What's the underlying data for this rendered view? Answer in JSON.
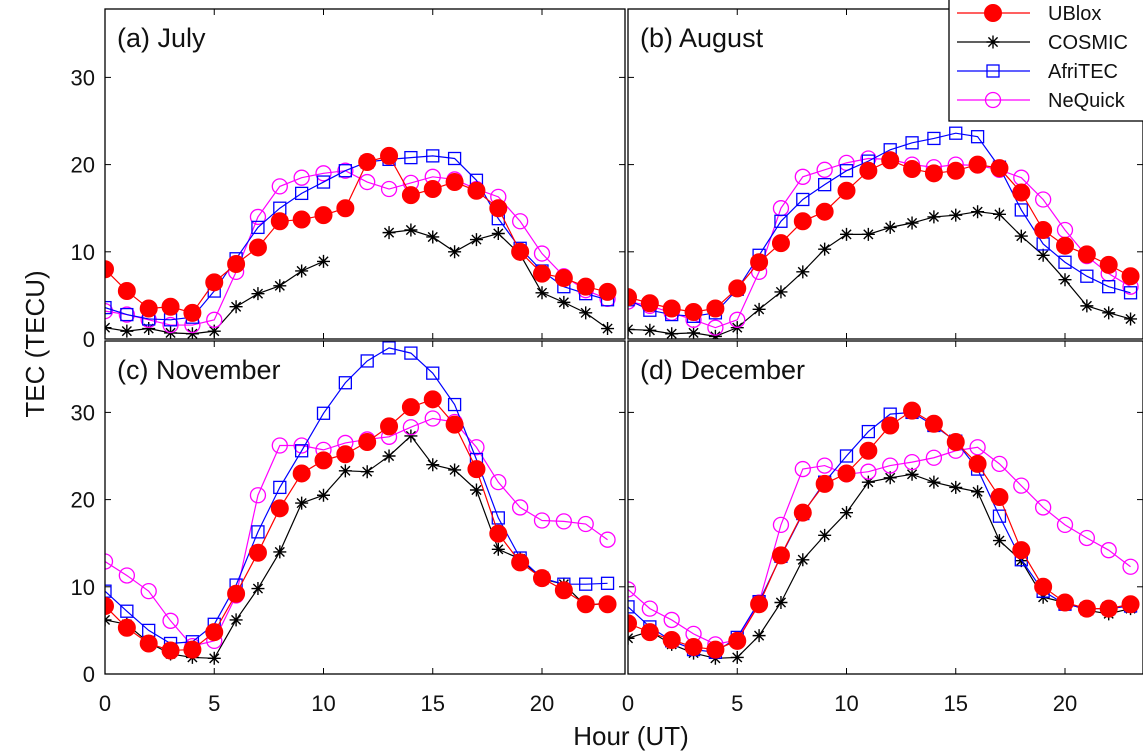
{
  "figure": {
    "ylabel": "TEC (TECU)",
    "xlabel": "Hour (UT)"
  },
  "legend": [
    {
      "name": "UBlox",
      "color": "#ff0000",
      "marker": "filled-circle"
    },
    {
      "name": "COSMIC",
      "color": "#000000",
      "marker": "asterisk"
    },
    {
      "name": "AfriTEC",
      "color": "#0000ff",
      "marker": "open-square"
    },
    {
      "name": "NeQuick",
      "color": "#ff00ff",
      "marker": "open-circle"
    }
  ],
  "chart_data": [
    {
      "type": "line",
      "title": "(a) July",
      "xlabel": "",
      "ylabel": "",
      "xlim": [
        0,
        23.5
      ],
      "ylim": [
        0,
        37
      ],
      "xticks": [
        "0",
        "5",
        "10",
        "15",
        "20"
      ],
      "yticks": [
        "0",
        "10",
        "20",
        "30"
      ],
      "legend_position": "top-right",
      "series": [
        {
          "name": "UBlox",
          "x": [
            0,
            1,
            2,
            3,
            4,
            5,
            6,
            7,
            8,
            9,
            10,
            11,
            12,
            13,
            14,
            15,
            16,
            17,
            18,
            19,
            20,
            21,
            22,
            23
          ],
          "values": [
            8,
            5.5,
            3.5,
            3.7,
            3,
            6.5,
            8.6,
            10.5,
            13.5,
            13.7,
            14.2,
            15,
            20.3,
            21,
            16.5,
            17.2,
            18,
            17,
            15,
            10,
            7.5,
            7,
            6,
            5.4
          ]
        },
        {
          "name": "COSMIC",
          "x": [
            0,
            1,
            2,
            3,
            4,
            5,
            6,
            7,
            8,
            9,
            10,
            13,
            14,
            15,
            16,
            17,
            18,
            19,
            20,
            21,
            22,
            23
          ],
          "values": [
            1.3,
            0.9,
            1.2,
            0.7,
            0.6,
            0.9,
            3.7,
            5.2,
            6.1,
            7.8,
            8.9,
            12.2,
            12.5,
            11.7,
            10,
            11.4,
            12.1,
            9.7,
            5.3,
            4.2,
            3,
            1.2
          ]
        },
        {
          "name": "AfriTEC",
          "x": [
            0,
            1,
            2,
            3,
            4,
            5,
            6,
            7,
            8,
            9,
            10,
            11,
            12,
            13,
            14,
            15,
            16,
            17,
            18,
            19,
            20,
            21,
            22,
            23
          ],
          "values": [
            3.6,
            2.8,
            2.3,
            2.2,
            2.5,
            5.5,
            9.2,
            12.8,
            15,
            16.7,
            18,
            19.3,
            20.3,
            20.6,
            20.8,
            21,
            20.7,
            18.2,
            13.8,
            10.4,
            7.8,
            6,
            5.2,
            4.5
          ]
        },
        {
          "name": "NeQuick",
          "x": [
            0,
            1,
            2,
            3,
            4,
            5,
            6,
            7,
            8,
            9,
            10,
            11,
            12,
            13,
            14,
            15,
            16,
            17,
            18,
            19,
            20,
            21,
            22,
            23
          ],
          "values": [
            3.2,
            2.8,
            2.2,
            1.6,
            1.6,
            2.2,
            7.7,
            14,
            17.5,
            18.5,
            19,
            19.3,
            18,
            17.2,
            17.9,
            18.6,
            18.3,
            17.2,
            16.3,
            13.5,
            9.8,
            7.2,
            5.6,
            4.6
          ]
        }
      ]
    },
    {
      "type": "line",
      "title": "(b) August",
      "xlabel": "",
      "ylabel": "",
      "xlim": [
        0,
        23.5
      ],
      "ylim": [
        0,
        37
      ],
      "xticks": [
        "0",
        "5",
        "10",
        "15",
        "20"
      ],
      "yticks": [
        "0",
        "10",
        "20",
        "30"
      ],
      "legend_position": "top-right",
      "series": [
        {
          "name": "UBlox",
          "x": [
            0,
            1,
            2,
            3,
            4,
            5,
            6,
            7,
            8,
            9,
            10,
            11,
            12,
            13,
            14,
            15,
            16,
            17,
            18,
            19,
            20,
            21,
            22,
            23
          ],
          "values": [
            4.8,
            4.1,
            3.5,
            3.1,
            3.5,
            5.8,
            8.8,
            11,
            13.5,
            14.6,
            17,
            19.3,
            20.5,
            19.5,
            19,
            19.3,
            20,
            19.6,
            16.8,
            12.5,
            10.7,
            9.7,
            8.5,
            7.2
          ]
        },
        {
          "name": "COSMIC",
          "x": [
            0,
            1,
            2,
            3,
            4,
            5,
            6,
            7,
            8,
            9,
            10,
            11,
            12,
            13,
            14,
            15,
            16,
            17,
            18,
            19,
            20,
            21,
            22,
            23
          ],
          "values": [
            1.1,
            1,
            0.6,
            0.7,
            0.3,
            1.3,
            3.4,
            5.4,
            7.7,
            10.3,
            12,
            12,
            12.8,
            13.3,
            14,
            14.2,
            14.6,
            14.3,
            11.8,
            9.6,
            6.8,
            3.8,
            3,
            2.3
          ]
        },
        {
          "name": "AfriTEC",
          "x": [
            0,
            1,
            2,
            3,
            4,
            5,
            6,
            7,
            8,
            9,
            10,
            11,
            12,
            13,
            14,
            15,
            16,
            17,
            18,
            19,
            20,
            21,
            22,
            23
          ],
          "values": [
            4.5,
            3.3,
            2.8,
            2.6,
            3,
            5.7,
            9.6,
            13.5,
            16,
            17.7,
            19.3,
            20.4,
            21.7,
            22.5,
            23,
            23.6,
            23.2,
            19.7,
            14.8,
            10.9,
            8.8,
            7.2,
            6,
            5.3
          ]
        },
        {
          "name": "NeQuick",
          "x": [
            0,
            1,
            2,
            3,
            4,
            5,
            6,
            7,
            8,
            9,
            10,
            11,
            12,
            13,
            14,
            15,
            16,
            17,
            18,
            19,
            20,
            21,
            22,
            23
          ],
          "values": [
            4.3,
            3.8,
            3,
            2.2,
            1.3,
            2.2,
            7.7,
            15,
            18.6,
            19.4,
            20.2,
            20.7,
            20.6,
            20,
            19.7,
            20,
            19.9,
            19.4,
            18.5,
            16,
            12.5,
            9.5,
            7.5,
            6
          ]
        }
      ]
    },
    {
      "type": "line",
      "title": "(c) November",
      "xlabel": "",
      "ylabel": "",
      "xlim": [
        0,
        23.5
      ],
      "ylim": [
        0,
        37
      ],
      "xticks": [
        "0",
        "5",
        "10",
        "15",
        "20"
      ],
      "yticks": [
        "0",
        "10",
        "20",
        "30"
      ],
      "series": [
        {
          "name": "UBlox",
          "x": [
            0,
            1,
            2,
            3,
            4,
            5,
            6,
            7,
            8,
            9,
            10,
            11,
            12,
            13,
            14,
            15,
            16,
            17,
            18,
            19,
            20,
            21,
            22,
            23
          ],
          "values": [
            7.8,
            5.3,
            3.5,
            2.7,
            2.8,
            4.8,
            9.2,
            13.9,
            19,
            23,
            24.5,
            25.2,
            26.6,
            28.4,
            30.6,
            31.5,
            28.6,
            23.5,
            16.1,
            12.8,
            11,
            9.6,
            8,
            8
          ]
        },
        {
          "name": "COSMIC",
          "x": [
            0,
            1,
            2,
            3,
            4,
            5,
            6,
            7,
            8,
            9,
            10,
            11,
            12,
            13,
            14,
            15,
            16,
            17,
            18,
            19,
            20,
            21,
            22,
            23
          ],
          "values": [
            6.2,
            5.7,
            3.6,
            2.3,
            1.9,
            1.8,
            6.2,
            9.8,
            14,
            19.6,
            20.5,
            23.3,
            23.2,
            25,
            27.3,
            24,
            23.4,
            21.1,
            14.3,
            13.2,
            10.9,
            10.3,
            7.8,
            8.2
          ]
        },
        {
          "name": "AfriTEC",
          "x": [
            0,
            1,
            2,
            3,
            4,
            5,
            6,
            7,
            8,
            9,
            10,
            11,
            12,
            13,
            14,
            15,
            16,
            17,
            18,
            19,
            20,
            21,
            22,
            23
          ],
          "values": [
            9.5,
            7.2,
            5,
            3.5,
            3.7,
            5.7,
            10.2,
            16.3,
            21.4,
            25.6,
            29.9,
            33.4,
            35.9,
            37.4,
            36.8,
            34.5,
            30.9,
            24.6,
            17.9,
            13.3,
            11,
            10.3,
            10.3,
            10.4
          ]
        },
        {
          "name": "NeQuick",
          "x": [
            0,
            1,
            2,
            3,
            4,
            5,
            6,
            7,
            8,
            9,
            10,
            11,
            12,
            13,
            14,
            15,
            16,
            17,
            18,
            19,
            20,
            21,
            22,
            23
          ],
          "values": [
            12.9,
            11.3,
            9.5,
            6.1,
            3.2,
            3.8,
            9,
            20.5,
            26.2,
            26.2,
            25.7,
            26.5,
            26.9,
            27.2,
            28.3,
            29.3,
            28.9,
            26,
            22,
            19.1,
            17.6,
            17.5,
            17.2,
            15.4
          ]
        }
      ]
    },
    {
      "type": "line",
      "title": "(d) December",
      "xlabel": "",
      "ylabel": "",
      "xlim": [
        0,
        23.5
      ],
      "ylim": [
        0,
        37
      ],
      "xticks": [
        "0",
        "5",
        "10",
        "15",
        "20"
      ],
      "yticks": [
        "0",
        "10",
        "20",
        "30"
      ],
      "series": [
        {
          "name": "UBlox",
          "x": [
            0,
            1,
            2,
            3,
            4,
            5,
            6,
            7,
            8,
            9,
            10,
            11,
            12,
            13,
            14,
            15,
            16,
            17,
            18,
            19,
            20,
            21,
            22,
            23
          ],
          "values": [
            5.8,
            4.8,
            3.9,
            3.1,
            2.8,
            3.8,
            8,
            13.6,
            18.5,
            21.8,
            23,
            25.6,
            28.5,
            30.2,
            28.7,
            26.6,
            24.1,
            20.3,
            14.2,
            10,
            8.2,
            7.5,
            7.5,
            8
          ]
        },
        {
          "name": "COSMIC",
          "x": [
            0,
            1,
            2,
            3,
            4,
            5,
            6,
            7,
            8,
            9,
            10,
            11,
            12,
            13,
            14,
            15,
            16,
            17,
            18,
            19,
            20,
            21,
            22,
            23
          ],
          "values": [
            4.1,
            4.9,
            3.4,
            2.4,
            1.8,
            1.9,
            4.4,
            8.2,
            13.1,
            15.9,
            18.5,
            22,
            22.5,
            22.9,
            22,
            21.4,
            20.9,
            15.3,
            13,
            8.8,
            8.2,
            7.3,
            6.9,
            7.5
          ]
        },
        {
          "name": "AfriTEC",
          "x": [
            0,
            1,
            2,
            3,
            4,
            5,
            6,
            7,
            8,
            9,
            10,
            11,
            12,
            13,
            14,
            15,
            16,
            17,
            18,
            19,
            20,
            21,
            22,
            23
          ],
          "values": [
            7.7,
            5.4,
            3.8,
            2.8,
            2.5,
            4.2,
            8.3,
            13.5,
            18.4,
            22,
            25,
            27.8,
            29.8,
            30,
            28.5,
            26.7,
            23.5,
            18.1,
            13.1,
            9.5,
            8,
            7.5,
            7.5,
            7.8
          ]
        },
        {
          "name": "NeQuick",
          "x": [
            0,
            1,
            2,
            3,
            4,
            5,
            6,
            7,
            8,
            9,
            10,
            11,
            12,
            13,
            14,
            15,
            16,
            17,
            18,
            19,
            20,
            21,
            22,
            23
          ],
          "values": [
            9.7,
            7.5,
            6.2,
            4.6,
            3.4,
            3.9,
            8.2,
            17.1,
            23.5,
            23.9,
            22.9,
            23.2,
            23.9,
            24.3,
            24.8,
            25.6,
            26,
            24.1,
            21.6,
            19.1,
            17.1,
            15.6,
            14.2,
            12.3
          ]
        }
      ]
    }
  ]
}
